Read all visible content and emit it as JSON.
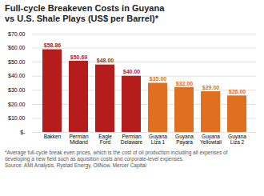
{
  "chart_data": {
    "type": "bar",
    "title": "Full-cycle Breakeven Costs in Guyana",
    "subtitle": "vs U.S. Shale Plays (US$ per Barrel)*",
    "categories": [
      "Bakken",
      "Permian\nMidland",
      "Eagle\nFord",
      "Permian\nDelaware",
      "Guyana\nLiza 1",
      "Guyana\nPayara",
      "Guyana\nYellowtail",
      "Guyana\nLiza 2"
    ],
    "values": [
      58.86,
      50.69,
      48.0,
      40.0,
      35.0,
      32.0,
      29.0,
      26.0
    ],
    "value_labels": [
      "$58.86",
      "$50.69",
      "$48.00",
      "$40.00",
      "$35.00",
      "$32.00",
      "$29.00",
      "$26.00"
    ],
    "data_labels": true,
    "colors": [
      "#b71c1c",
      "#b71c1c",
      "#b71c1c",
      "#b71c1c",
      "#e07020",
      "#e07020",
      "#e07020",
      "#e07020"
    ],
    "ylim": [
      0,
      70
    ],
    "yticks": [
      {
        "value": 0,
        "label": "$-"
      },
      {
        "value": 10,
        "label": "$10.00"
      },
      {
        "value": 20,
        "label": "$20.00"
      },
      {
        "value": 30,
        "label": "$30.00"
      },
      {
        "value": 40,
        "label": "$40.00"
      },
      {
        "value": 50,
        "label": "$50.00"
      },
      {
        "value": 60,
        "label": "$60.00"
      },
      {
        "value": 70,
        "label": "$70.00"
      }
    ],
    "grid": true,
    "footnotes": [
      "*Average full-cycle break even prices, which is the cost of oil production including all expenses of",
      "developing a new field such as aquisition costs and corporate-level expenses."
    ],
    "source": "Source: AMI Analysis, Rystad Energy, OilNow, Mercer Capital"
  }
}
